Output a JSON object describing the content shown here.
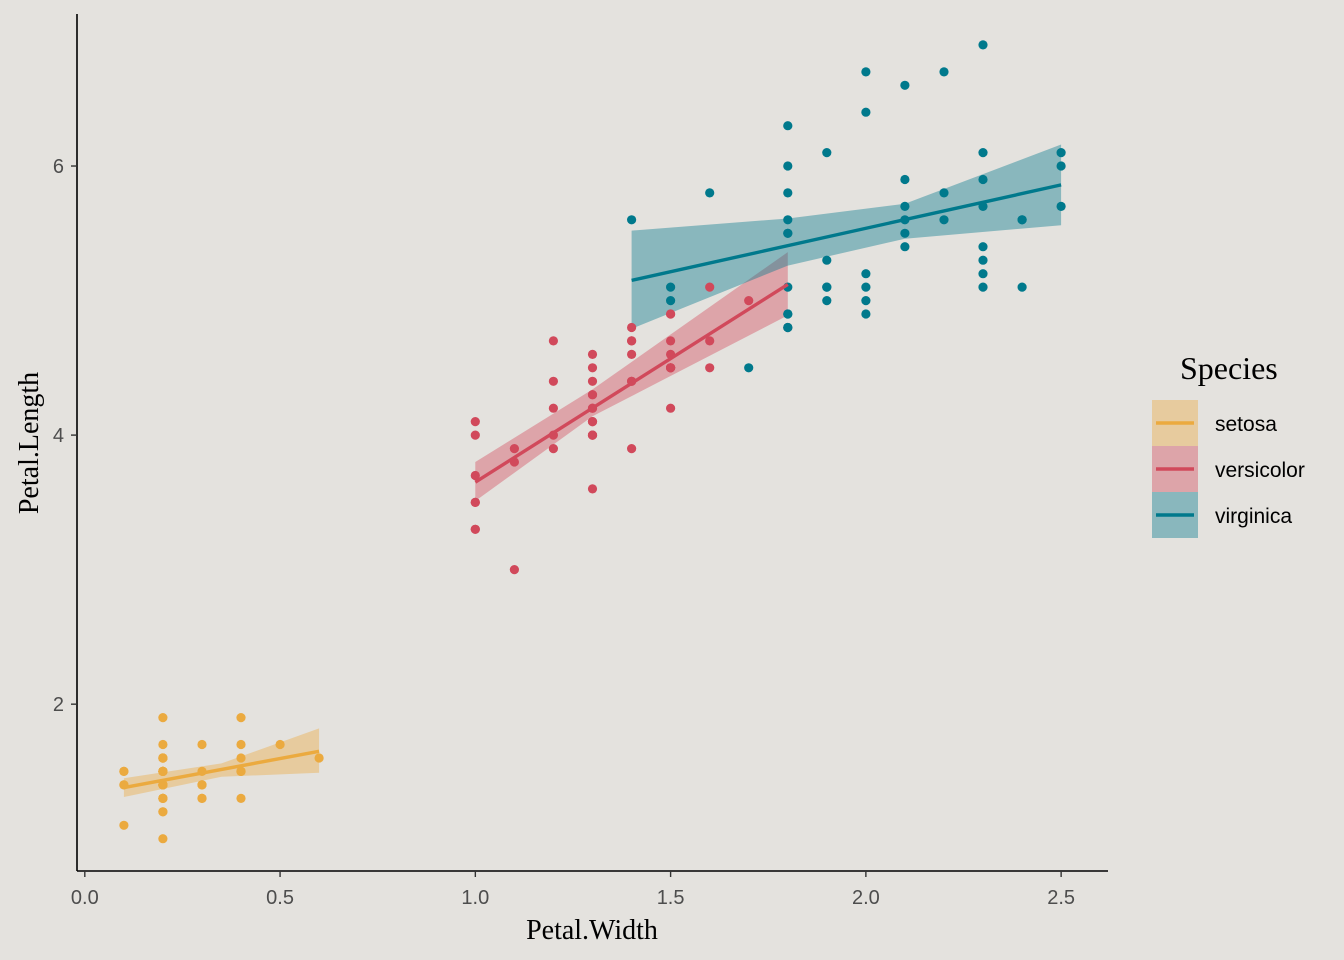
{
  "chart_data": {
    "type": "scatter",
    "title": "",
    "xlabel": "Petal.Width",
    "ylabel": "Petal.Length",
    "xlim": [
      -0.02,
      2.62
    ],
    "ylim": [
      0.76,
      7.13
    ],
    "x_ticks": [
      0.0,
      0.5,
      1.0,
      1.5,
      2.0,
      2.5
    ],
    "x_tick_labels": [
      "0.0",
      "0.5",
      "1.0",
      "1.5",
      "2.0",
      "2.5"
    ],
    "y_ticks": [
      2,
      4,
      6
    ],
    "y_tick_labels": [
      "2",
      "4",
      "6"
    ],
    "grid": false,
    "legend": {
      "title": "Species",
      "position": "right"
    },
    "series": [
      {
        "name": "setosa",
        "color": "#EBAA3F",
        "points": [
          [
            0.2,
            1.4
          ],
          [
            0.2,
            1.4
          ],
          [
            0.2,
            1.3
          ],
          [
            0.2,
            1.5
          ],
          [
            0.2,
            1.4
          ],
          [
            0.4,
            1.7
          ],
          [
            0.3,
            1.4
          ],
          [
            0.2,
            1.5
          ],
          [
            0.2,
            1.4
          ],
          [
            0.1,
            1.5
          ],
          [
            0.2,
            1.5
          ],
          [
            0.2,
            1.6
          ],
          [
            0.1,
            1.4
          ],
          [
            0.1,
            1.1
          ],
          [
            0.2,
            1.2
          ],
          [
            0.4,
            1.5
          ],
          [
            0.4,
            1.3
          ],
          [
            0.3,
            1.4
          ],
          [
            0.3,
            1.7
          ],
          [
            0.3,
            1.5
          ],
          [
            0.2,
            1.7
          ],
          [
            0.4,
            1.5
          ],
          [
            0.2,
            1.0
          ],
          [
            0.5,
            1.7
          ],
          [
            0.2,
            1.9
          ],
          [
            0.2,
            1.6
          ],
          [
            0.4,
            1.6
          ],
          [
            0.2,
            1.5
          ],
          [
            0.2,
            1.4
          ],
          [
            0.2,
            1.6
          ],
          [
            0.2,
            1.6
          ],
          [
            0.4,
            1.5
          ],
          [
            0.1,
            1.5
          ],
          [
            0.2,
            1.4
          ],
          [
            0.2,
            1.5
          ],
          [
            0.2,
            1.2
          ],
          [
            0.2,
            1.3
          ],
          [
            0.1,
            1.4
          ],
          [
            0.2,
            1.3
          ],
          [
            0.2,
            1.5
          ],
          [
            0.3,
            1.3
          ],
          [
            0.3,
            1.3
          ],
          [
            0.2,
            1.3
          ],
          [
            0.6,
            1.6
          ],
          [
            0.4,
            1.9
          ],
          [
            0.3,
            1.4
          ],
          [
            0.2,
            1.6
          ],
          [
            0.2,
            1.4
          ],
          [
            0.2,
            1.5
          ],
          [
            0.2,
            1.4
          ]
        ],
        "fit": {
          "x": [
            0.1,
            0.6
          ],
          "y": [
            1.38,
            1.65
          ]
        },
        "band": {
          "x": [
            0.1,
            0.35,
            0.6
          ],
          "lower": [
            1.31,
            1.46,
            1.49
          ],
          "upper": [
            1.45,
            1.56,
            1.82
          ]
        }
      },
      {
        "name": "versicolor",
        "color": "#D1495B",
        "points": [
          [
            1.4,
            4.7
          ],
          [
            1.5,
            4.5
          ],
          [
            1.5,
            4.9
          ],
          [
            1.3,
            4.0
          ],
          [
            1.5,
            4.6
          ],
          [
            1.3,
            4.5
          ],
          [
            1.6,
            4.7
          ],
          [
            1.0,
            3.3
          ],
          [
            1.3,
            4.6
          ],
          [
            1.4,
            3.9
          ],
          [
            1.0,
            3.5
          ],
          [
            1.5,
            4.2
          ],
          [
            1.0,
            4.0
          ],
          [
            1.4,
            4.7
          ],
          [
            1.3,
            3.6
          ],
          [
            1.4,
            4.4
          ],
          [
            1.5,
            4.5
          ],
          [
            1.0,
            4.1
          ],
          [
            1.5,
            4.5
          ],
          [
            1.1,
            3.9
          ],
          [
            1.8,
            4.8
          ],
          [
            1.3,
            4.0
          ],
          [
            1.5,
            4.9
          ],
          [
            1.2,
            4.7
          ],
          [
            1.3,
            4.3
          ],
          [
            1.4,
            4.4
          ],
          [
            1.4,
            4.8
          ],
          [
            1.7,
            5.0
          ],
          [
            1.5,
            4.5
          ],
          [
            1.0,
            3.5
          ],
          [
            1.1,
            3.8
          ],
          [
            1.0,
            3.7
          ],
          [
            1.2,
            3.9
          ],
          [
            1.6,
            5.1
          ],
          [
            1.5,
            4.5
          ],
          [
            1.6,
            4.5
          ],
          [
            1.5,
            4.7
          ],
          [
            1.3,
            4.4
          ],
          [
            1.3,
            4.1
          ],
          [
            1.3,
            4.0
          ],
          [
            1.2,
            4.4
          ],
          [
            1.4,
            4.6
          ],
          [
            1.2,
            4.0
          ],
          [
            1.0,
            3.3
          ],
          [
            1.3,
            4.2
          ],
          [
            1.2,
            4.2
          ],
          [
            1.3,
            4.2
          ],
          [
            1.3,
            4.3
          ],
          [
            1.1,
            3.0
          ],
          [
            1.3,
            4.1
          ]
        ],
        "fit": {
          "x": [
            1.0,
            1.8
          ],
          "y": [
            3.65,
            5.12
          ]
        },
        "band": {
          "x": [
            1.0,
            1.3,
            1.8
          ],
          "lower": [
            3.51,
            4.14,
            4.89
          ],
          "upper": [
            3.8,
            4.34,
            5.36
          ]
        }
      },
      {
        "name": "virginica",
        "color": "#00798C",
        "points": [
          [
            2.5,
            6.0
          ],
          [
            1.9,
            5.1
          ],
          [
            2.1,
            5.9
          ],
          [
            1.8,
            5.6
          ],
          [
            2.2,
            5.8
          ],
          [
            2.1,
            6.6
          ],
          [
            1.7,
            4.5
          ],
          [
            1.8,
            6.3
          ],
          [
            1.8,
            5.8
          ],
          [
            2.5,
            6.1
          ],
          [
            2.0,
            5.1
          ],
          [
            1.9,
            5.3
          ],
          [
            2.1,
            5.5
          ],
          [
            2.0,
            5.0
          ],
          [
            2.4,
            5.1
          ],
          [
            2.3,
            5.3
          ],
          [
            1.8,
            5.5
          ],
          [
            2.2,
            6.7
          ],
          [
            2.3,
            6.9
          ],
          [
            1.5,
            5.0
          ],
          [
            2.3,
            5.7
          ],
          [
            2.0,
            4.9
          ],
          [
            2.0,
            6.7
          ],
          [
            1.8,
            4.9
          ],
          [
            2.1,
            5.7
          ],
          [
            1.8,
            6.0
          ],
          [
            1.8,
            4.8
          ],
          [
            1.8,
            4.9
          ],
          [
            2.1,
            5.6
          ],
          [
            1.6,
            5.8
          ],
          [
            1.9,
            6.1
          ],
          [
            2.0,
            6.4
          ],
          [
            2.2,
            5.6
          ],
          [
            1.5,
            5.1
          ],
          [
            1.4,
            5.6
          ],
          [
            2.3,
            6.1
          ],
          [
            2.4,
            5.6
          ],
          [
            1.8,
            5.5
          ],
          [
            1.8,
            4.8
          ],
          [
            2.1,
            5.4
          ],
          [
            2.4,
            5.6
          ],
          [
            2.3,
            5.1
          ],
          [
            1.9,
            5.1
          ],
          [
            2.3,
            5.9
          ],
          [
            2.5,
            5.7
          ],
          [
            2.3,
            5.2
          ],
          [
            1.9,
            5.0
          ],
          [
            2.0,
            5.2
          ],
          [
            2.3,
            5.4
          ],
          [
            1.8,
            5.1
          ]
        ],
        "fit": {
          "x": [
            1.4,
            2.5
          ],
          "y": [
            5.15,
            5.86
          ]
        },
        "band": {
          "x": [
            1.4,
            1.8,
            2.1,
            2.5
          ],
          "lower": [
            4.79,
            5.26,
            5.46,
            5.56
          ],
          "upper": [
            5.52,
            5.61,
            5.72,
            6.16
          ]
        }
      }
    ]
  }
}
